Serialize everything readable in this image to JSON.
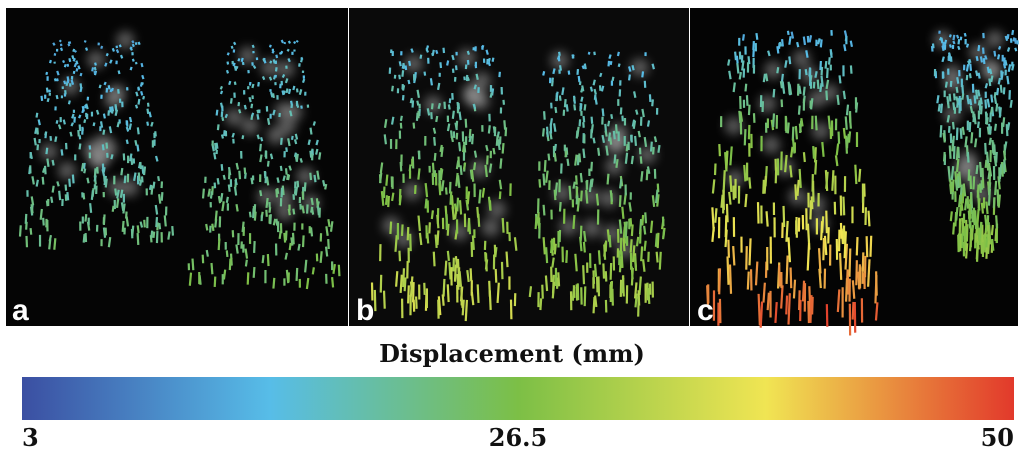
{
  "panels": [
    {
      "label": "a"
    },
    {
      "label": "b"
    },
    {
      "label": "c"
    }
  ],
  "colorbar": {
    "title": "Displacement (mm)",
    "range": [
      3,
      50
    ],
    "ticks": [
      3,
      26.5,
      50
    ],
    "colors": [
      "#3b4fa2",
      "#57bde8",
      "#7cbf46",
      "#f0e553",
      "#e2392b"
    ]
  }
}
